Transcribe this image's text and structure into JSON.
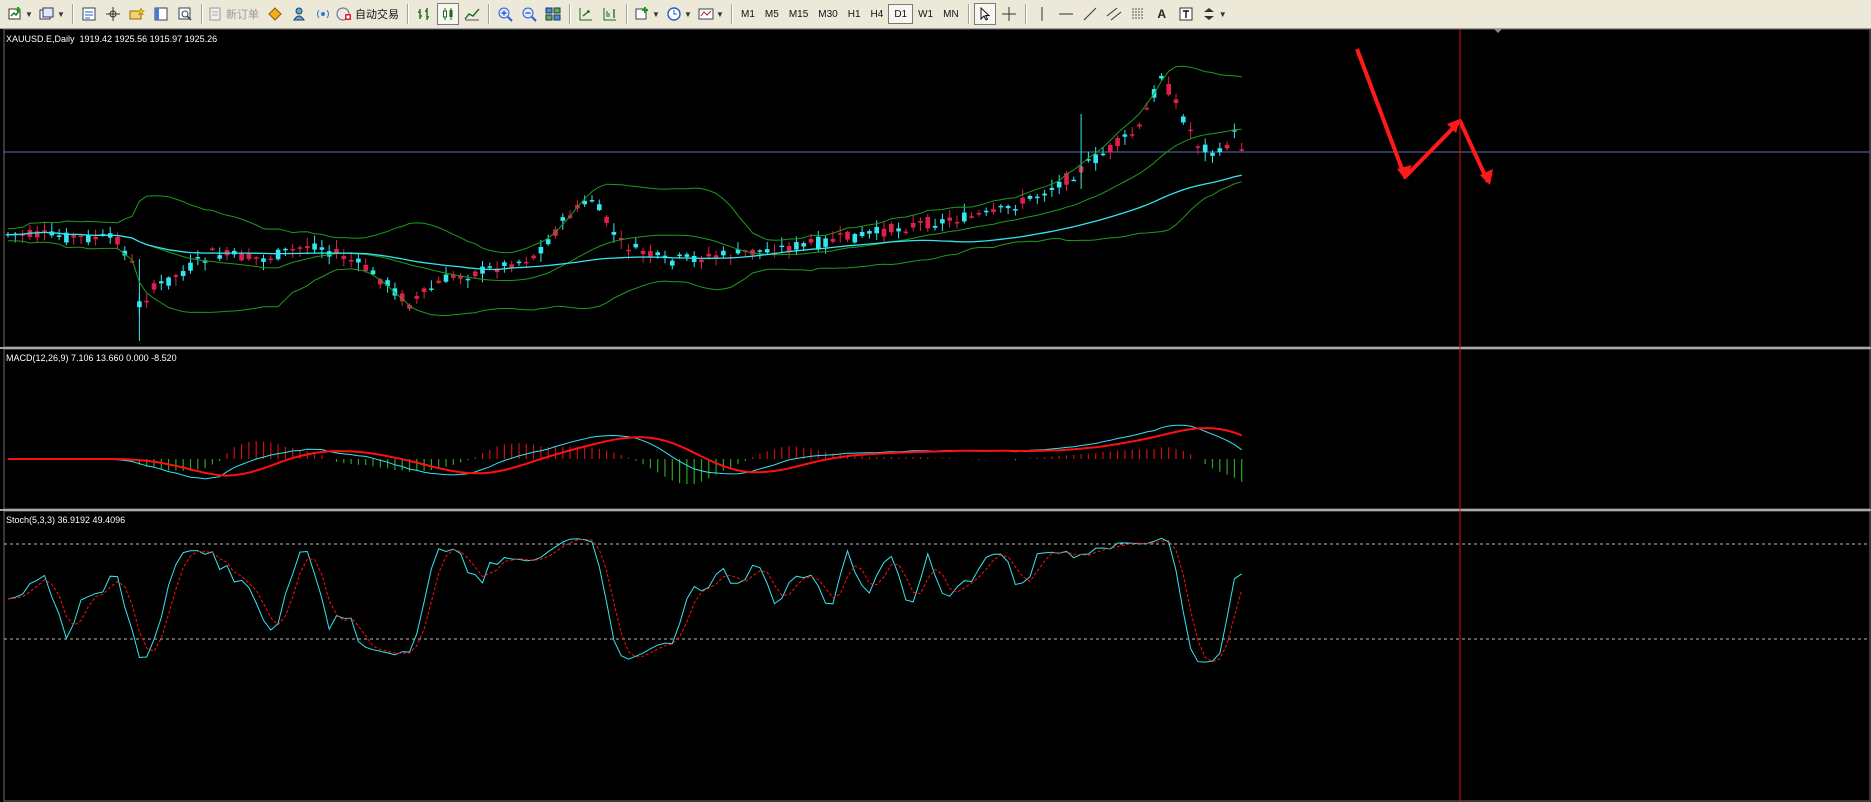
{
  "toolbar": {
    "new_order_label": "新订单",
    "auto_trade_label": "自动交易",
    "timeframes": [
      "M1",
      "M5",
      "M15",
      "M30",
      "H1",
      "H4",
      "D1",
      "W1",
      "MN"
    ],
    "active_timeframe": "D1"
  },
  "chart": {
    "symbol_label": "XAUUSD.E,Daily",
    "ohlc": "1919.42 1925.56 1915.97 1925.26",
    "macd_label": "MACD(12,26,9) 7.106 13.660 0.000 -8.520",
    "stoch_label": "Stoch(5,3,3) 36.9192 49.4096",
    "colors": {
      "bull_candle": "#e0204a",
      "bear_candle": "#33e6f0",
      "bollinger": "#1f9a1f",
      "moving_average": "#33e6f0",
      "macd_signal": "#ff1010",
      "macd_hist_positive": "#cc1010",
      "macd_hist_negative": "#22aa22",
      "cursor_line": "#d01010",
      "arrow": "#ff1a1a"
    }
  }
}
